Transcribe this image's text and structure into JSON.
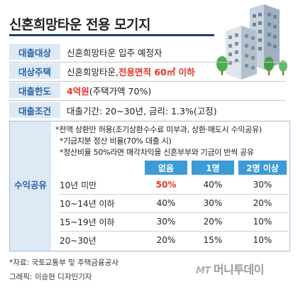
{
  "title": "신혼희망타운 전용 모기지",
  "rows": [
    {
      "label": "대출대상",
      "text": "신혼희망타운 입주 예정자"
    },
    {
      "label": "대상주택",
      "text_pre": "신혼희망타운, ",
      "text_red": "전용면적 60㎡ 이하"
    },
    {
      "label": "대출한도",
      "text_red": "4억원",
      "text_post": "(주택가액 70%)"
    },
    {
      "label": "대출조건",
      "text": "대출기간: 20~30년, 금리: 1.3%(고정)"
    }
  ],
  "profit": {
    "label": "수익공유",
    "notes": [
      "*전액 상환만 허용(조기상환수수료 미부과, 상환·매도시 수익공유)",
      "*기금지분 정산 비율(70% 대출 시)",
      "*정산비율 50%라면 매각차익을 신혼부부와 기금이 반씩 공유"
    ],
    "headers": [
      "없음",
      "1명",
      "2명 이상"
    ],
    "table": [
      {
        "period": "10년 미만",
        "values": [
          "50%",
          "40%",
          "30%"
        ],
        "highlight": 0
      },
      {
        "period": "10~14년 이하",
        "values": [
          "40%",
          "30%",
          "20%"
        ]
      },
      {
        "period": "15~19년 이하",
        "values": [
          "30%",
          "20%",
          "10%"
        ]
      },
      {
        "period": "20~30년",
        "values": [
          "20%",
          "15%",
          "10%"
        ]
      }
    ]
  },
  "source": "*자료: 국토교통부 및 주택금융공사",
  "credit": "그래픽: 이승현 디자인기자",
  "logo": {
    "mark": "MT",
    "name": "머니투데이"
  },
  "colors": {
    "accent": "#3c9bd6",
    "label_bg": "#dde9f4",
    "label_text": "#2a62a8",
    "highlight": "#e5342b"
  }
}
